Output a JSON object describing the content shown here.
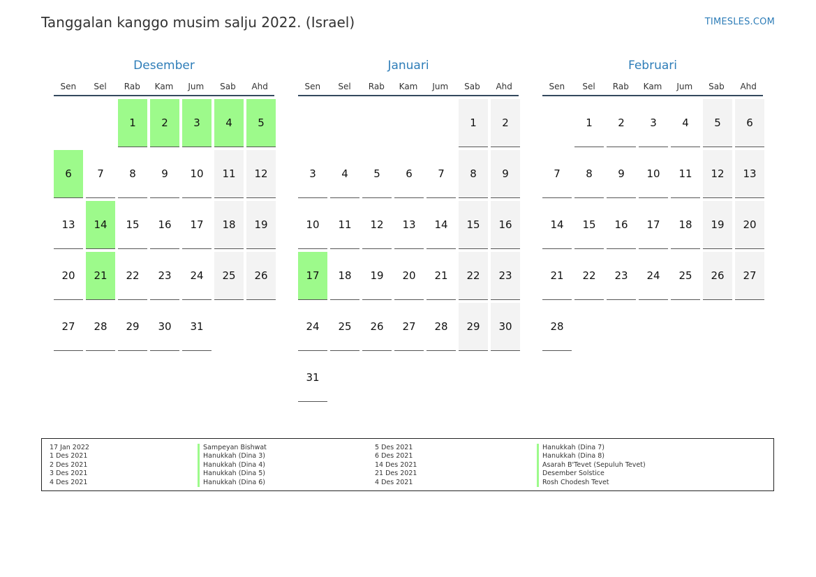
{
  "page": {
    "title": "Tanggalan kanggo musim salju 2022. (Israel)",
    "site": "TIMESLES.COM"
  },
  "colors": {
    "accent": "#2e7db8",
    "holiday": "#9dfa8b",
    "weekend": "#f3f3f3",
    "rule": "#34495e"
  },
  "months": [
    {
      "name": "Desember",
      "weekdays": [
        "Sen",
        "Sel",
        "Rab",
        "Kam",
        "Jum",
        "Sab",
        "Ahd"
      ],
      "offset": 2,
      "days": 31,
      "holidays": [
        1,
        2,
        3,
        4,
        5,
        6,
        14,
        21
      ]
    },
    {
      "name": "Januari",
      "weekdays": [
        "Sen",
        "Sel",
        "Rab",
        "Kam",
        "Jum",
        "Sab",
        "Ahd"
      ],
      "offset": 5,
      "days": 31,
      "holidays": [
        17
      ]
    },
    {
      "name": "Februari",
      "weekdays": [
        "Sen",
        "Sel",
        "Rab",
        "Kam",
        "Jum",
        "Sab",
        "Ahd"
      ],
      "offset": 1,
      "days": 28,
      "holidays": []
    }
  ],
  "holidays": {
    "left": [
      {
        "date": "17 Jan 2022",
        "name": "Sampeyan Bishwat"
      },
      {
        "date": "1 Des 2021",
        "name": "Hanukkah (Dina 3)"
      },
      {
        "date": "2 Des 2021",
        "name": "Hanukkah (Dina 4)"
      },
      {
        "date": "3 Des 2021",
        "name": "Hanukkah (Dina 5)"
      },
      {
        "date": "4 Des 2021",
        "name": "Hanukkah (Dina 6)"
      }
    ],
    "right": [
      {
        "date": "5 Des 2021",
        "name": "Hanukkah (Dina 7)"
      },
      {
        "date": "6 Des 2021",
        "name": "Hanukkah (Dina 8)"
      },
      {
        "date": "14 Des 2021",
        "name": "Asarah B'Tevet (Sepuluh Tevet)"
      },
      {
        "date": "21 Des 2021",
        "name": "Desember Solstice"
      },
      {
        "date": "4 Des 2021",
        "name": "Rosh Chodesh Tevet"
      }
    ]
  }
}
